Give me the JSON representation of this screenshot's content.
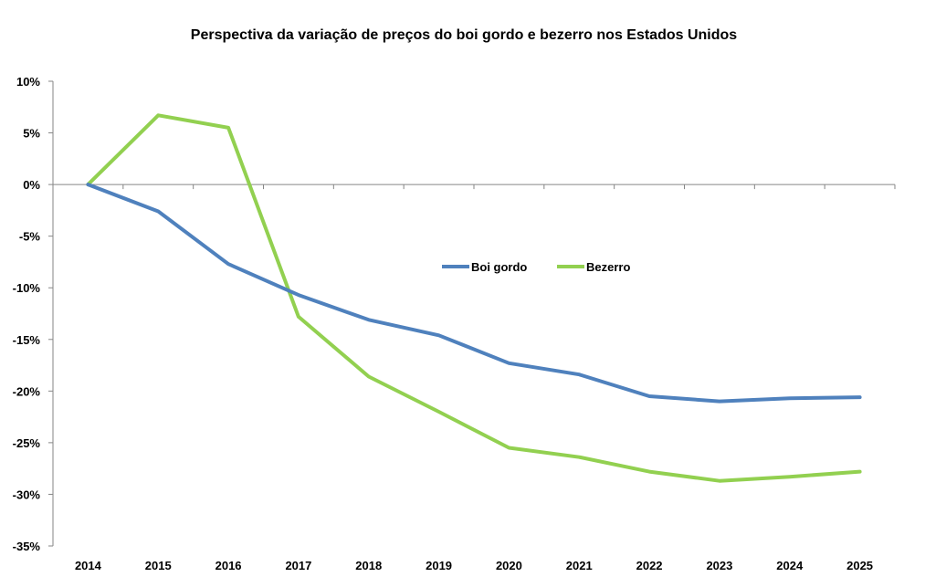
{
  "chart_data": {
    "type": "line",
    "title": "Perspectiva da variação de preços do boi gordo e bezerro nos Estados Unidos",
    "xlabel": "",
    "ylabel": "",
    "categories": [
      "2014",
      "2015",
      "2016",
      "2017",
      "2018",
      "2019",
      "2020",
      "2021",
      "2022",
      "2023",
      "2024",
      "2025"
    ],
    "ylim": [
      -35,
      10
    ],
    "yticks": [
      10,
      5,
      0,
      -5,
      -10,
      -15,
      -20,
      -25,
      -30,
      -35
    ],
    "ytick_labels": [
      "10%",
      "5%",
      "0%",
      "-5%",
      "-10%",
      "-15%",
      "-20%",
      "-25%",
      "-30%",
      "-35%"
    ],
    "grid": false,
    "legend_position": "center",
    "series": [
      {
        "name": "Boi gordo",
        "color": "#4F81BD",
        "values": [
          0,
          -2.6,
          -7.7,
          -10.7,
          -13.1,
          -14.6,
          -17.3,
          -18.4,
          -20.5,
          -21.0,
          -20.7,
          -20.6
        ]
      },
      {
        "name": "Bezerro",
        "color": "#92D050",
        "values": [
          0,
          6.7,
          5.5,
          -12.8,
          -18.6,
          -22.0,
          -25.5,
          -26.4,
          -27.8,
          -28.7,
          -28.3,
          -27.8
        ]
      }
    ]
  }
}
